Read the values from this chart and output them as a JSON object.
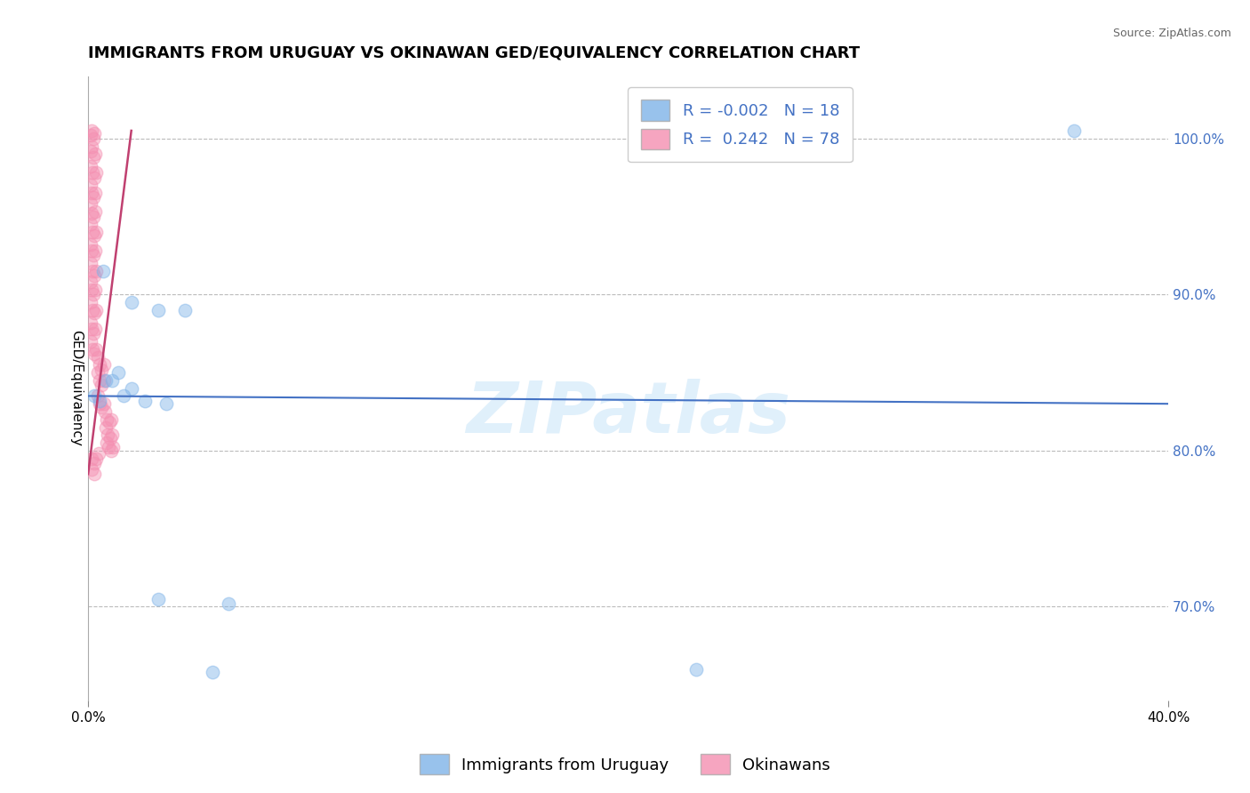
{
  "title": "IMMIGRANTS FROM URUGUAY VS OKINAWAN GED/EQUIVALENCY CORRELATION CHART",
  "source": "Source: ZipAtlas.com",
  "ylabel": "GED/Equivalency",
  "xlim": [
    0.0,
    40.0
  ],
  "ylim": [
    64.0,
    104.0
  ],
  "yticks": [
    70.0,
    80.0,
    90.0,
    100.0
  ],
  "ytick_labels": [
    "70.0%",
    "80.0%",
    "90.0%",
    "100.0%"
  ],
  "blue_scatter": [
    [
      0.22,
      83.5
    ],
    [
      0.55,
      91.5
    ],
    [
      0.9,
      84.5
    ],
    [
      1.1,
      85.0
    ],
    [
      1.6,
      89.5
    ],
    [
      2.6,
      89.0
    ],
    [
      3.6,
      89.0
    ],
    [
      1.3,
      83.5
    ],
    [
      2.1,
      83.2
    ],
    [
      2.9,
      83.0
    ],
    [
      1.6,
      84.0
    ],
    [
      0.65,
      84.5
    ],
    [
      2.6,
      70.5
    ],
    [
      5.2,
      70.2
    ],
    [
      4.6,
      65.8
    ],
    [
      22.5,
      66.0
    ],
    [
      36.5,
      100.5
    ],
    [
      0.42,
      83.2
    ]
  ],
  "pink_scatter": [
    [
      0.08,
      100.2
    ],
    [
      0.12,
      100.5
    ],
    [
      0.18,
      100.0
    ],
    [
      0.22,
      100.3
    ],
    [
      0.08,
      99.2
    ],
    [
      0.14,
      99.5
    ],
    [
      0.2,
      98.8
    ],
    [
      0.26,
      99.0
    ],
    [
      0.1,
      98.2
    ],
    [
      0.16,
      97.8
    ],
    [
      0.22,
      97.5
    ],
    [
      0.28,
      97.8
    ],
    [
      0.08,
      97.0
    ],
    [
      0.14,
      96.5
    ],
    [
      0.2,
      96.2
    ],
    [
      0.26,
      96.5
    ],
    [
      0.08,
      95.8
    ],
    [
      0.14,
      95.2
    ],
    [
      0.2,
      95.0
    ],
    [
      0.26,
      95.3
    ],
    [
      0.1,
      94.5
    ],
    [
      0.16,
      94.0
    ],
    [
      0.22,
      93.8
    ],
    [
      0.28,
      94.0
    ],
    [
      0.08,
      93.2
    ],
    [
      0.14,
      92.8
    ],
    [
      0.2,
      92.5
    ],
    [
      0.26,
      92.8
    ],
    [
      0.1,
      92.0
    ],
    [
      0.16,
      91.5
    ],
    [
      0.22,
      91.2
    ],
    [
      0.28,
      91.5
    ],
    [
      0.08,
      90.8
    ],
    [
      0.14,
      90.3
    ],
    [
      0.2,
      90.0
    ],
    [
      0.26,
      90.3
    ],
    [
      0.1,
      89.5
    ],
    [
      0.16,
      89.0
    ],
    [
      0.22,
      88.8
    ],
    [
      0.28,
      89.0
    ],
    [
      0.08,
      88.2
    ],
    [
      0.14,
      87.8
    ],
    [
      0.2,
      87.5
    ],
    [
      0.26,
      87.8
    ],
    [
      0.1,
      87.0
    ],
    [
      0.16,
      86.5
    ],
    [
      0.22,
      86.2
    ],
    [
      0.28,
      86.5
    ],
    [
      0.36,
      86.0
    ],
    [
      0.42,
      85.5
    ],
    [
      0.5,
      85.2
    ],
    [
      0.58,
      85.5
    ],
    [
      0.36,
      85.0
    ],
    [
      0.42,
      84.5
    ],
    [
      0.5,
      84.2
    ],
    [
      0.58,
      84.5
    ],
    [
      0.36,
      83.5
    ],
    [
      0.42,
      83.0
    ],
    [
      0.5,
      82.8
    ],
    [
      0.58,
      83.0
    ],
    [
      0.62,
      82.5
    ],
    [
      0.7,
      82.0
    ],
    [
      0.78,
      81.8
    ],
    [
      0.86,
      82.0
    ],
    [
      0.65,
      81.5
    ],
    [
      0.73,
      81.0
    ],
    [
      0.81,
      80.8
    ],
    [
      0.89,
      81.0
    ],
    [
      0.68,
      80.5
    ],
    [
      0.76,
      80.2
    ],
    [
      0.84,
      80.0
    ],
    [
      0.92,
      80.2
    ],
    [
      0.14,
      79.5
    ],
    [
      0.22,
      79.2
    ],
    [
      0.3,
      79.5
    ],
    [
      0.38,
      79.8
    ],
    [
      0.14,
      78.8
    ],
    [
      0.22,
      78.5
    ]
  ],
  "blue_line_x": [
    0.0,
    40.0
  ],
  "blue_line_y": [
    83.5,
    83.0
  ],
  "pink_line_x": [
    0.0,
    1.6
  ],
  "pink_line_y": [
    78.5,
    100.5
  ],
  "watermark": "ZIPatlas",
  "scatter_size": 110,
  "scatter_alpha": 0.45,
  "blue_color": "#7EB3E8",
  "pink_color": "#F48FB1",
  "blue_line_color": "#4472C4",
  "pink_line_color": "#C04070",
  "background_color": "#FFFFFF",
  "grid_color": "#BBBBBB",
  "title_fontsize": 13,
  "axis_label_fontsize": 11,
  "tick_fontsize": 11,
  "legend_fontsize": 13
}
